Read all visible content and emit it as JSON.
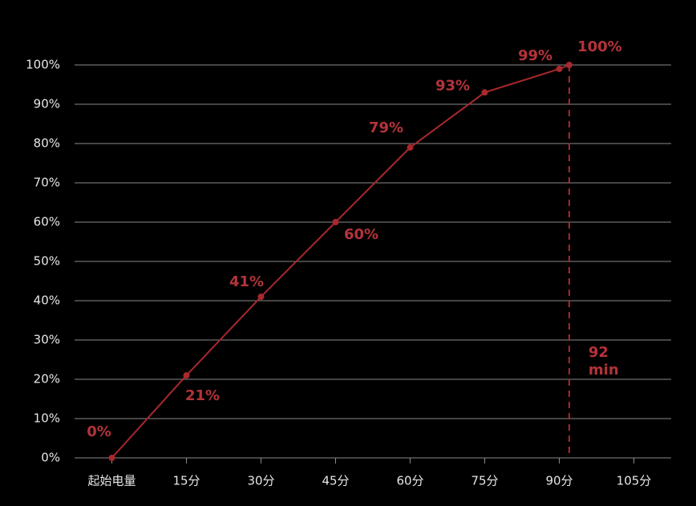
{
  "chart_data": {
    "type": "line",
    "x": [
      0,
      15,
      30,
      45,
      60,
      75,
      90,
      92
    ],
    "values": [
      0,
      21,
      41,
      60,
      79,
      93,
      99,
      100
    ],
    "value_labels": [
      "0%",
      "21%",
      "41%",
      "60%",
      "79%",
      "93%",
      "99%",
      "100%"
    ],
    "color": "#a8282d",
    "label_color": "#b5333a",
    "xlim": [
      -7.5,
      112.5
    ],
    "xticks": [
      {
        "value": 0,
        "label": "起始电量"
      },
      {
        "value": 15,
        "label": "15分"
      },
      {
        "value": 30,
        "label": "30分"
      },
      {
        "value": 45,
        "label": "45分"
      },
      {
        "value": 60,
        "label": "60分"
      },
      {
        "value": 75,
        "label": "75分"
      },
      {
        "value": 90,
        "label": "90分"
      },
      {
        "value": 105,
        "label": "105分"
      }
    ],
    "ylim": [
      0,
      100
    ],
    "yticks": [
      {
        "value": 0,
        "label": "0%"
      },
      {
        "value": 10,
        "label": "10%"
      },
      {
        "value": 20,
        "label": "20%"
      },
      {
        "value": 30,
        "label": "30%"
      },
      {
        "value": 40,
        "label": "40%"
      },
      {
        "value": 50,
        "label": "50%"
      },
      {
        "value": 60,
        "label": "60%"
      },
      {
        "value": 70,
        "label": "70%"
      },
      {
        "value": 80,
        "label": "80%"
      },
      {
        "value": 90,
        "label": "90%"
      },
      {
        "value": 100,
        "label": "100%"
      }
    ],
    "grid": true,
    "marker": {
      "x": 92,
      "label": [
        "92",
        "min"
      ]
    }
  }
}
